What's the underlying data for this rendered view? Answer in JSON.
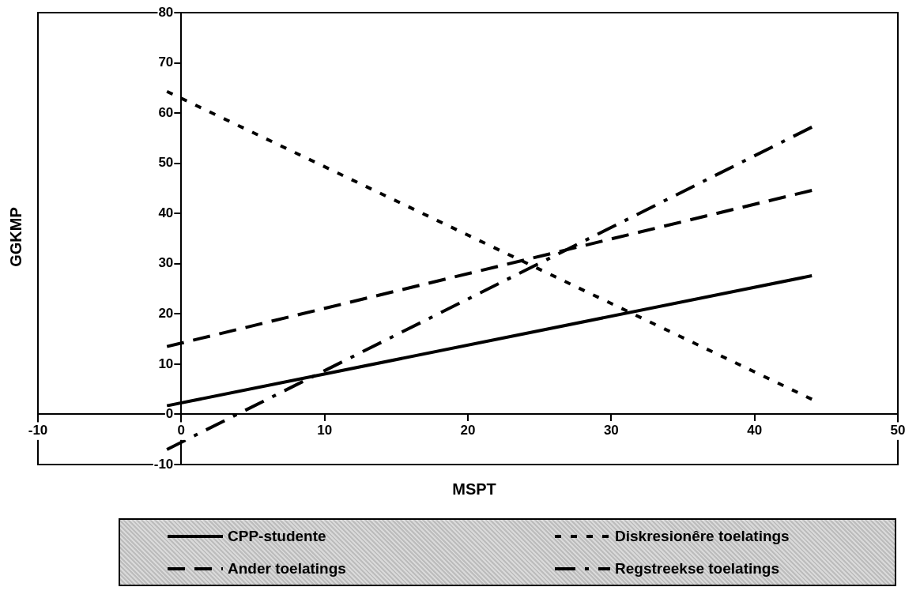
{
  "chart_data": {
    "type": "line",
    "xlabel": "MSPT",
    "ylabel": "GGKMP",
    "x": [
      -1,
      44
    ],
    "xlim": [
      -10,
      50
    ],
    "xticks": [
      -10,
      0,
      10,
      20,
      30,
      40,
      50
    ],
    "ylim": [
      -10,
      80
    ],
    "yticks": [
      -10,
      0,
      10,
      20,
      30,
      40,
      50,
      60,
      70,
      80
    ],
    "grid": false,
    "legend": "bottom",
    "marker": "none",
    "series": [
      {
        "name": "CPP-studente",
        "color": "#000000",
        "line_style": "solid",
        "values": [
          1.7,
          27.6
        ]
      },
      {
        "name": "Ander toelatings",
        "color": "#000000",
        "line_style": "dashed",
        "values": [
          13.5,
          44.6
        ]
      },
      {
        "name": "Diskresionêre toelatings",
        "color": "#000000",
        "line_style": "dotted",
        "values": [
          64.3,
          3.0
        ]
      },
      {
        "name": "Regstreekse toelatings",
        "color": "#000000",
        "line_style": "dashdot",
        "values": [
          -7,
          57.2
        ]
      }
    ]
  }
}
